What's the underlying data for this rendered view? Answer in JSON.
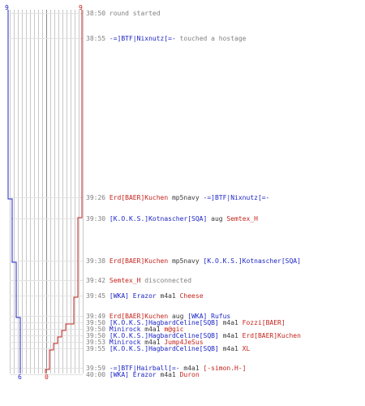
{
  "colors": {
    "blue": "#1c25c4",
    "red": "#c4231c",
    "gray": "#808080",
    "grid": "#c8c8c8",
    "dark": "#3a3a3a"
  },
  "scores": {
    "blue_start": "9",
    "red_start": "9",
    "blue_end": "6",
    "red_end": "0"
  },
  "graph": {
    "blue_remaining": [
      9,
      9,
      9,
      9,
      8,
      8,
      8,
      8,
      7,
      7,
      7,
      7,
      7,
      7,
      7,
      7,
      6
    ],
    "red_remaining": [
      9,
      9,
      8,
      8,
      8,
      7,
      7,
      7,
      6,
      5,
      5,
      4,
      3,
      2,
      1,
      1,
      0
    ]
  },
  "log": [
    {
      "time": "38:50",
      "parts": [
        {
          "t": "round started",
          "c": "gray"
        }
      ]
    },
    {
      "time": "38:55",
      "parts": [
        {
          "t": "-=]BTF|Nixnutz[=-",
          "c": "blue"
        },
        {
          "t": " touched a hostage",
          "c": "gray"
        }
      ]
    },
    {
      "time": "39:26",
      "parts": [
        {
          "t": "Erd[BAER]Kuchen",
          "c": "red"
        },
        {
          "t": " mp5navy ",
          "c": "dark"
        },
        {
          "t": "-=]BTF|Nixnutz[=-",
          "c": "blue"
        }
      ]
    },
    {
      "time": "39:30",
      "parts": [
        {
          "t": "[K.O.K.S.]Kotnascher[SQA]",
          "c": "blue"
        },
        {
          "t": " aug ",
          "c": "dark"
        },
        {
          "t": "Semtex_H",
          "c": "red"
        }
      ]
    },
    {
      "time": "39:38",
      "parts": [
        {
          "t": "Erd[BAER]Kuchen",
          "c": "red"
        },
        {
          "t": " mp5navy ",
          "c": "dark"
        },
        {
          "t": "[K.O.K.S.]Kotnascher[SQA]",
          "c": "blue"
        }
      ]
    },
    {
      "time": "39:42",
      "parts": [
        {
          "t": "Semtex_H",
          "c": "red"
        },
        {
          "t": " disconnected",
          "c": "gray"
        }
      ]
    },
    {
      "time": "39:45",
      "parts": [
        {
          "t": "[WKA] Erazor",
          "c": "blue"
        },
        {
          "t": " m4a1 ",
          "c": "dark"
        },
        {
          "t": "Cheese",
          "c": "red"
        }
      ]
    },
    {
      "time": "39:49",
      "parts": [
        {
          "t": "Erd[BAER]Kuchen",
          "c": "red"
        },
        {
          "t": " aug ",
          "c": "dark"
        },
        {
          "t": "[WKA] Rufus",
          "c": "blue"
        }
      ]
    },
    {
      "time": "39:50",
      "parts": [
        {
          "t": "[K.O.K.S.]HagbardCeline[SQB]",
          "c": "blue"
        },
        {
          "t": " m4a1 ",
          "c": "dark"
        },
        {
          "t": "Fozzi[BAER]",
          "c": "red"
        }
      ]
    },
    {
      "time": "39:50",
      "parts": [
        {
          "t": "Minirock",
          "c": "blue"
        },
        {
          "t": " m4a1 ",
          "c": "dark"
        },
        {
          "t": "m@gic",
          "c": "red"
        }
      ]
    },
    {
      "time": "39:50",
      "parts": [
        {
          "t": "[K.O.K.S.]HagbardCeline[SQB]",
          "c": "blue"
        },
        {
          "t": " m4a1 ",
          "c": "dark"
        },
        {
          "t": "Erd[BAER]Kuchen",
          "c": "red"
        }
      ]
    },
    {
      "time": "39:53",
      "parts": [
        {
          "t": "Minirock",
          "c": "blue"
        },
        {
          "t": " m4a1 ",
          "c": "dark"
        },
        {
          "t": "Jump4JeSus",
          "c": "red"
        }
      ]
    },
    {
      "time": "39:55",
      "parts": [
        {
          "t": "[K.O.K.S.]HagbardCeline[SQB]",
          "c": "blue"
        },
        {
          "t": " m4a1 ",
          "c": "dark"
        },
        {
          "t": "XL",
          "c": "red"
        }
      ]
    },
    {
      "time": "39:59",
      "parts": [
        {
          "t": "-=]BTF|Hairball[=-",
          "c": "blue"
        },
        {
          "t": " m4a1 ",
          "c": "dark"
        },
        {
          "t": "[-simon.H-]",
          "c": "red"
        }
      ]
    },
    {
      "time": "40:00",
      "parts": [
        {
          "t": "[WKA] Erazor",
          "c": "blue"
        },
        {
          "t": " m4a1 ",
          "c": "dark"
        },
        {
          "t": "Duron",
          "c": "red"
        }
      ]
    }
  ]
}
